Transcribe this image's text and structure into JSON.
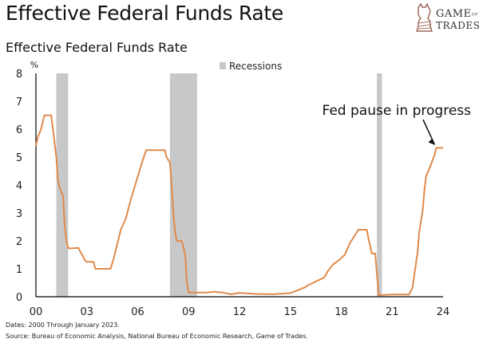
{
  "header": {
    "main_title": "Effective Federal Funds Rate",
    "logo_line1": "GAME",
    "logo_of": "OF",
    "logo_line2": "TRADES"
  },
  "footer": {
    "dates": "Dates: 2000 Through January 2023.",
    "source": "Source: Bureau of Economic Analysis, National Bureau of Economic Research, Game of Trades."
  },
  "chart_data": {
    "type": "line",
    "title": "Effective Federal Funds Rate",
    "ylabel": "%",
    "xlabel": "",
    "xlim": [
      2000,
      2024
    ],
    "ylim": [
      0,
      8
    ],
    "yticks": [
      0,
      1,
      2,
      3,
      4,
      5,
      6,
      7,
      8
    ],
    "ytick_labels": [
      "0",
      "1",
      "2",
      "3",
      "4",
      "5",
      "6",
      "7",
      "8"
    ],
    "xticks": [
      2000,
      2003,
      2006,
      2009,
      2012,
      2015,
      2018,
      2021,
      2024
    ],
    "xtick_labels": [
      "00",
      "03",
      "06",
      "09",
      "12",
      "15",
      "18",
      "21",
      "24"
    ],
    "grid": false,
    "legend": {
      "entries": [
        "Recessions"
      ],
      "placement": "top-center"
    },
    "annotation": {
      "text": "Fed pause in progress",
      "points_to": [
        2023.6,
        5.33
      ]
    },
    "colors": {
      "line": "#E08A4A",
      "recession": "#C8C8C8",
      "axis": "#000000"
    },
    "recessions": [
      {
        "start": 2001.2,
        "end": 2001.9
      },
      {
        "start": 2007.9,
        "end": 2009.5
      },
      {
        "start": 2020.1,
        "end": 2020.4
      }
    ],
    "series": [
      {
        "name": "Effective Federal Funds Rate",
        "x": [
          2000.0,
          2000.1,
          2000.3,
          2000.5,
          2000.6,
          2000.9,
          2001.0,
          2001.1,
          2001.2,
          2001.3,
          2001.4,
          2001.6,
          2001.7,
          2001.8,
          2001.9,
          2002.0,
          2002.5,
          2002.9,
          2003.0,
          2003.4,
          2003.5,
          2003.9,
          2004.4,
          2004.6,
          2005.0,
          2005.3,
          2005.6,
          2006.0,
          2006.3,
          2006.5,
          2007.0,
          2007.6,
          2007.7,
          2007.9,
          2008.0,
          2008.1,
          2008.2,
          2008.3,
          2008.6,
          2008.8,
          2008.9,
          2009.0,
          2009.5,
          2010.0,
          2010.5,
          2011.0,
          2011.5,
          2012.0,
          2013.0,
          2014.0,
          2015.0,
          2015.9,
          2016.0,
          2016.9,
          2017.0,
          2017.2,
          2017.5,
          2017.9,
          2018.2,
          2018.5,
          2018.8,
          2019.0,
          2019.5,
          2019.6,
          2019.8,
          2020.0,
          2020.2,
          2020.3,
          2021.0,
          2021.5,
          2022.0,
          2022.2,
          2022.3,
          2022.5,
          2022.6,
          2022.8,
          2022.9,
          2023.0,
          2023.2,
          2023.5,
          2023.6,
          2024.0
        ],
        "values": [
          5.4,
          5.7,
          6.0,
          6.5,
          6.5,
          6.5,
          6.0,
          5.5,
          5.0,
          4.2,
          3.9,
          3.6,
          2.5,
          2.0,
          1.75,
          1.73,
          1.75,
          1.3,
          1.25,
          1.25,
          1.0,
          1.0,
          1.0,
          1.4,
          2.4,
          2.8,
          3.5,
          4.3,
          4.9,
          5.25,
          5.25,
          5.25,
          5.0,
          4.8,
          4.0,
          3.0,
          2.3,
          2.0,
          2.0,
          1.5,
          0.5,
          0.15,
          0.15,
          0.15,
          0.18,
          0.15,
          0.09,
          0.14,
          0.1,
          0.09,
          0.13,
          0.35,
          0.4,
          0.66,
          0.7,
          0.91,
          1.15,
          1.33,
          1.5,
          1.91,
          2.2,
          2.4,
          2.4,
          2.1,
          1.55,
          1.55,
          0.05,
          0.06,
          0.08,
          0.08,
          0.08,
          0.33,
          0.77,
          1.6,
          2.33,
          3.1,
          3.8,
          4.33,
          4.6,
          5.08,
          5.33,
          5.33
        ]
      }
    ]
  }
}
